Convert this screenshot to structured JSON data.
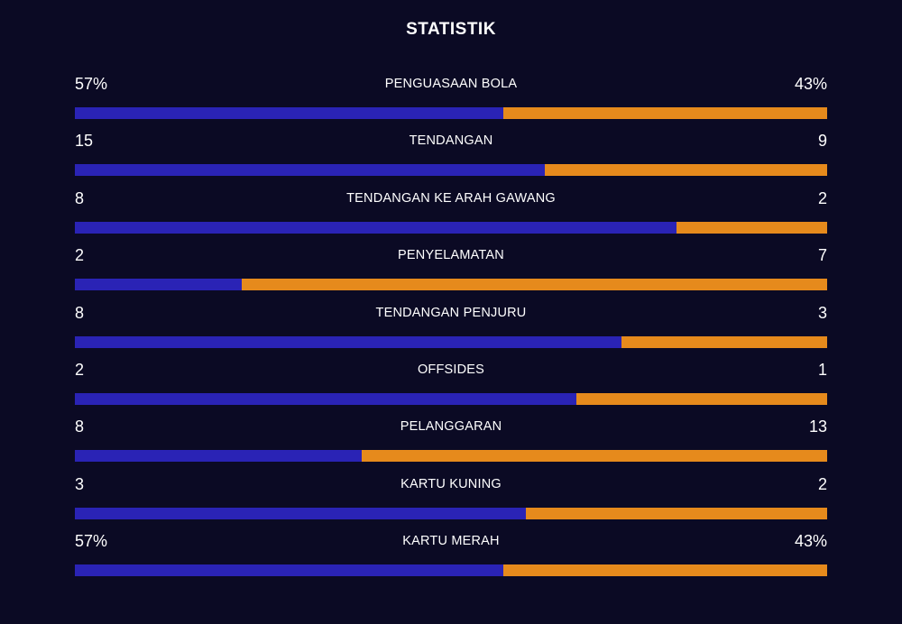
{
  "title": "STATISTIK",
  "colors": {
    "background": "#0b0a24",
    "home": "#2a23b5",
    "away": "#e68a1c",
    "text": "#ffffff"
  },
  "stats": [
    {
      "label": "PENGUASAAN BOLA",
      "left": "57%",
      "right": "43%",
      "home_share": 0.57
    },
    {
      "label": "TENDANGAN",
      "left": "15",
      "right": "9",
      "home_share": 0.625
    },
    {
      "label": "TENDANGAN KE ARAH GAWANG",
      "left": "8",
      "right": "2",
      "home_share": 0.8
    },
    {
      "label": "PENYELAMATAN",
      "left": "2",
      "right": "7",
      "home_share": 0.222
    },
    {
      "label": "TENDANGAN PENJURU",
      "left": "8",
      "right": "3",
      "home_share": 0.727
    },
    {
      "label": "OFFSIDES",
      "left": "2",
      "right": "1",
      "home_share": 0.667
    },
    {
      "label": "PELANGGARAN",
      "left": "8",
      "right": "13",
      "home_share": 0.381
    },
    {
      "label": "KARTU KUNING",
      "left": "3",
      "right": "2",
      "home_share": 0.6
    },
    {
      "label": "KARTU MERAH",
      "left": "57%",
      "right": "43%",
      "home_share": 0.57
    }
  ]
}
